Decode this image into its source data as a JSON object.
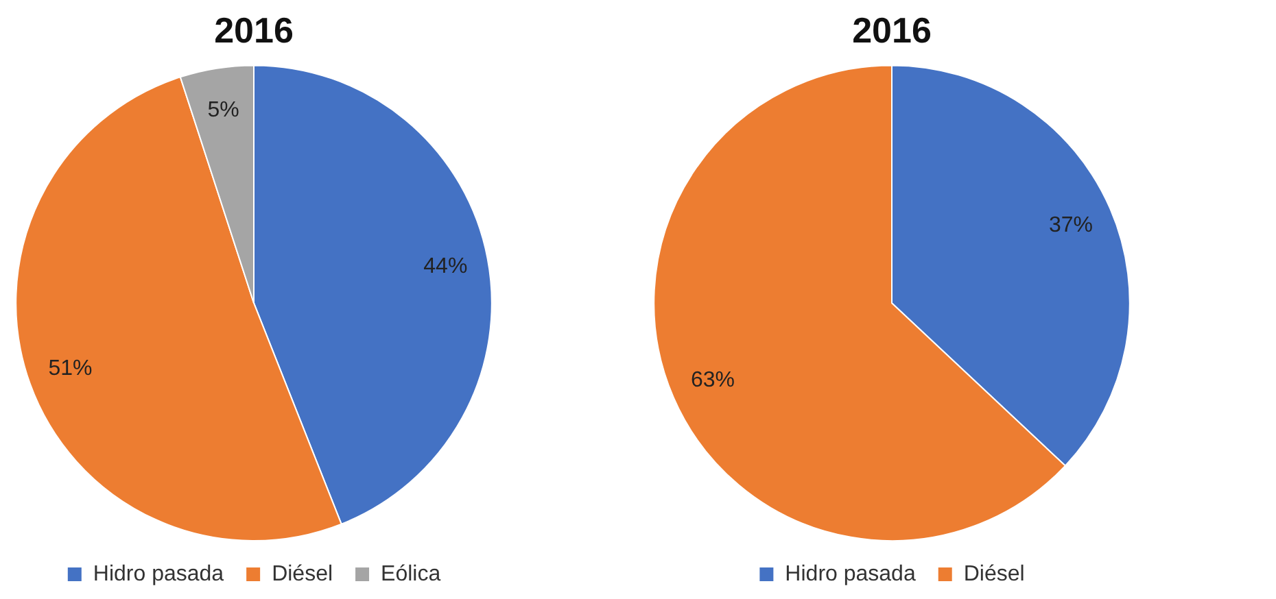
{
  "chart_data": [
    {
      "type": "pie",
      "title": "2016",
      "categories": [
        "Hidro pasada",
        "Diésel",
        "Eólica"
      ],
      "values": [
        44,
        51,
        5
      ],
      "colors": [
        "#4472c4",
        "#ed7d31",
        "#a5a5a5"
      ],
      "value_labels": [
        "44%",
        "51%",
        "5%"
      ],
      "legend": "bottom"
    },
    {
      "type": "pie",
      "title": "2016",
      "categories": [
        "Hidro pasada",
        "Diésel"
      ],
      "values": [
        37,
        63
      ],
      "colors": [
        "#4472c4",
        "#ed7d31"
      ],
      "value_labels": [
        "37%",
        "63%"
      ],
      "legend": "bottom"
    }
  ]
}
